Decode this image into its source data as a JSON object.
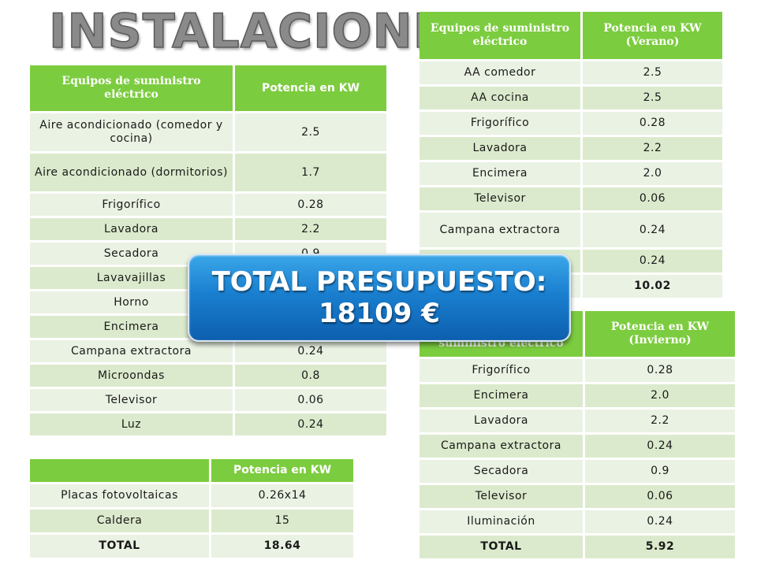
{
  "title": "INSTALACIONES",
  "main_table": {
    "headers": [
      "Equipos de suministro eléctrico",
      "Potencia en KW"
    ],
    "rows": [
      [
        "Aire acondicionado (comedor y cocina)",
        "2.5"
      ],
      [
        "Aire acondicionado (dormitorios)",
        "1.7"
      ],
      [
        "Frigorífico",
        "0.28"
      ],
      [
        "Lavadora",
        "2.2"
      ],
      [
        "Secadora",
        "0.9"
      ],
      [
        "Lavavajillas",
        ""
      ],
      [
        "Horno",
        ""
      ],
      [
        "Encimera",
        ""
      ],
      [
        "Campana extractora",
        "0.24"
      ],
      [
        "Microondas",
        "0.8"
      ],
      [
        "Televisor",
        "0.06"
      ],
      [
        "Luz",
        "0.24"
      ]
    ]
  },
  "summer_table": {
    "headers": [
      "Equipos de suministro eléctrico",
      "Potencia en KW (Verano)"
    ],
    "rows": [
      [
        "AA comedor",
        "2.5"
      ],
      [
        "AA cocina",
        "2.5"
      ],
      [
        "Frigorífico",
        "0.28"
      ],
      [
        "Lavadora",
        "2.2"
      ],
      [
        "Encimera",
        "2.0"
      ],
      [
        "Televisor",
        "0.06"
      ],
      [
        "Campana extractora",
        "0.24"
      ],
      [
        "",
        "0.24"
      ],
      [
        "",
        "10.02"
      ]
    ]
  },
  "winter_table": {
    "headers": [
      "suministro eléctrico",
      "Potencia en KW (Invierno)"
    ],
    "rows": [
      [
        "Frigorífico",
        "0.28"
      ],
      [
        "Encimera",
        "2.0"
      ],
      [
        "Lavadora",
        "2.2"
      ],
      [
        "Campana extractora",
        "0.24"
      ],
      [
        "Secadora",
        "0.9"
      ],
      [
        "Televisor",
        "0.06"
      ],
      [
        "Iluminación",
        "0.24"
      ],
      [
        "TOTAL",
        "5.92"
      ]
    ]
  },
  "bottom_table": {
    "headers": [
      "",
      "Potencia en KW"
    ],
    "rows": [
      [
        "Placas fotovoltaicas",
        "0.26x14"
      ],
      [
        "Caldera",
        "15"
      ],
      [
        "TOTAL",
        "18.64"
      ]
    ]
  },
  "banner": {
    "line1": "TOTAL PRESUPUESTO:",
    "line2": "18109 €"
  },
  "colors": {
    "header_green": "#7ccc3f",
    "row_light": "#eaf2e3",
    "row_alt": "#dbeacc",
    "banner_blue": "#1a7fd0"
  }
}
